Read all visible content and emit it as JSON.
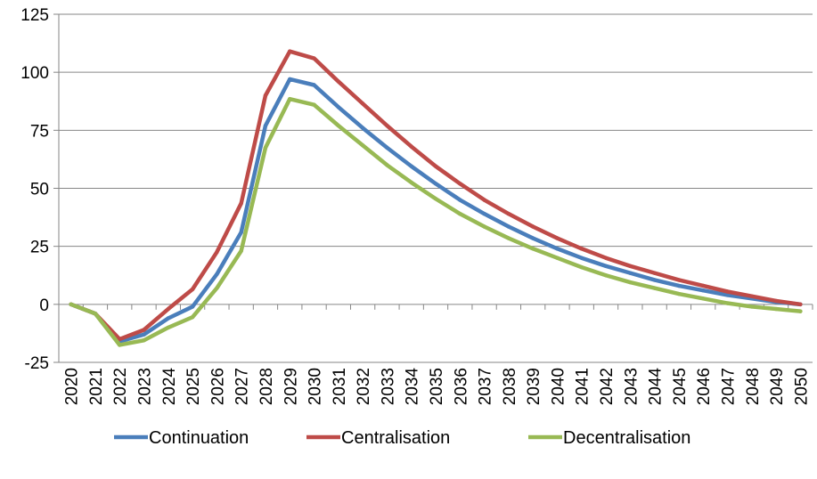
{
  "chart_data": {
    "type": "line",
    "title": "",
    "xlabel": "",
    "ylabel": "",
    "x": [
      "2020",
      "2021",
      "2022",
      "2023",
      "2024",
      "2025",
      "2026",
      "2027",
      "2028",
      "2029",
      "2030",
      "2031",
      "2032",
      "2033",
      "2034",
      "2035",
      "2036",
      "2037",
      "2038",
      "2039",
      "2040",
      "2041",
      "2042",
      "2043",
      "2044",
      "2045",
      "2046",
      "2047",
      "2048",
      "2049",
      "2050"
    ],
    "ylim": [
      -25,
      125
    ],
    "yticks": [
      "125",
      "100",
      "75",
      "50",
      "25",
      "0",
      "-25"
    ],
    "grid": true,
    "legend_position": "bottom",
    "series": [
      {
        "name": "Continuation",
        "color": "#4a7ebb",
        "values": [
          0,
          -4,
          -16,
          -13,
          -6,
          -1,
          13,
          31,
          77,
          97,
          94.5,
          85,
          76,
          67.5,
          59.5,
          52,
          45,
          39,
          33.5,
          28.5,
          24,
          20,
          16.5,
          13.5,
          10.5,
          8,
          6,
          4,
          2.5,
          1,
          0
        ]
      },
      {
        "name": "Centralisation",
        "color": "#be4b48",
        "values": [
          0,
          -4,
          -15,
          -11,
          -2,
          6.5,
          22.5,
          43.5,
          90,
          109,
          106,
          96,
          86.5,
          77,
          68,
          59.5,
          52,
          45,
          39,
          33.5,
          28.5,
          24,
          20,
          16.5,
          13.5,
          10.5,
          8,
          5.5,
          3.5,
          1.5,
          0
        ]
      },
      {
        "name": "Decentralisation",
        "color": "#98b954",
        "values": [
          0,
          -4,
          -17.5,
          -15.5,
          -10,
          -5.5,
          7,
          23,
          67.5,
          88.5,
          86,
          77,
          68.5,
          60,
          52.5,
          45.5,
          39,
          33.5,
          28.5,
          24,
          20,
          16,
          12.5,
          9.5,
          7,
          4.5,
          2.5,
          0.5,
          -1,
          -2,
          -3
        ]
      }
    ]
  }
}
